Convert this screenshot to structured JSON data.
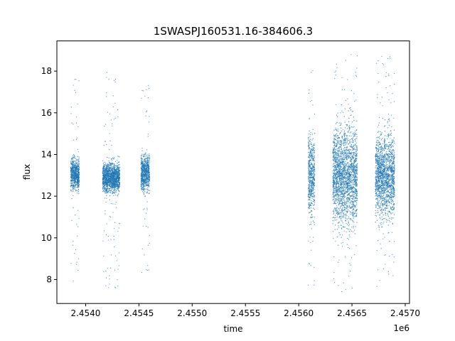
{
  "chart_data": {
    "type": "scatter",
    "title": "1SWASPJ160531.16-384606.3",
    "xlabel": "time",
    "ylabel": "flux",
    "x_offset_label": "1e6",
    "xlim": [
      2.45373,
      2.45704
    ],
    "ylim": [
      6.85,
      19.45
    ],
    "x_ticks": [
      2.454,
      2.4545,
      2.455,
      2.4555,
      2.456,
      2.4565,
      2.457
    ],
    "x_tick_labels": [
      "2.4540",
      "2.4545",
      "2.4550",
      "2.4555",
      "2.4560",
      "2.4565",
      "2.4570"
    ],
    "y_ticks": [
      8,
      10,
      12,
      14,
      16,
      18
    ],
    "y_tick_labels": [
      "8",
      "10",
      "12",
      "14",
      "16",
      "18"
    ],
    "grid": false,
    "marker_color": "#1f77b4",
    "series": [
      {
        "clusters": [
          {
            "x_range": [
              2.45386,
              2.45394
            ],
            "core": [
              12.1,
              14.0
            ],
            "spread": [
              7.9,
              18.0
            ]
          },
          {
            "x_range": [
              2.45416,
              2.45432
            ],
            "core": [
              12.0,
              13.8
            ],
            "spread": [
              7.6,
              18.0
            ]
          },
          {
            "x_range": [
              2.45452,
              2.4546
            ],
            "core": [
              12.0,
              14.2
            ],
            "spread": [
              8.3,
              17.6
            ]
          },
          {
            "x_range": [
              2.45609,
              2.45615
            ],
            "core": [
              10.5,
              15.5
            ],
            "spread": [
              7.6,
              18.8
            ]
          },
          {
            "x_range": [
              2.45632,
              2.45655
            ],
            "core": [
              10.0,
              16.0
            ],
            "spread": [
              7.4,
              18.8
            ]
          },
          {
            "x_range": [
              2.45672,
              2.4569
            ],
            "core": [
              10.5,
              15.5
            ],
            "spread": [
              7.6,
              18.8
            ]
          }
        ]
      }
    ]
  }
}
